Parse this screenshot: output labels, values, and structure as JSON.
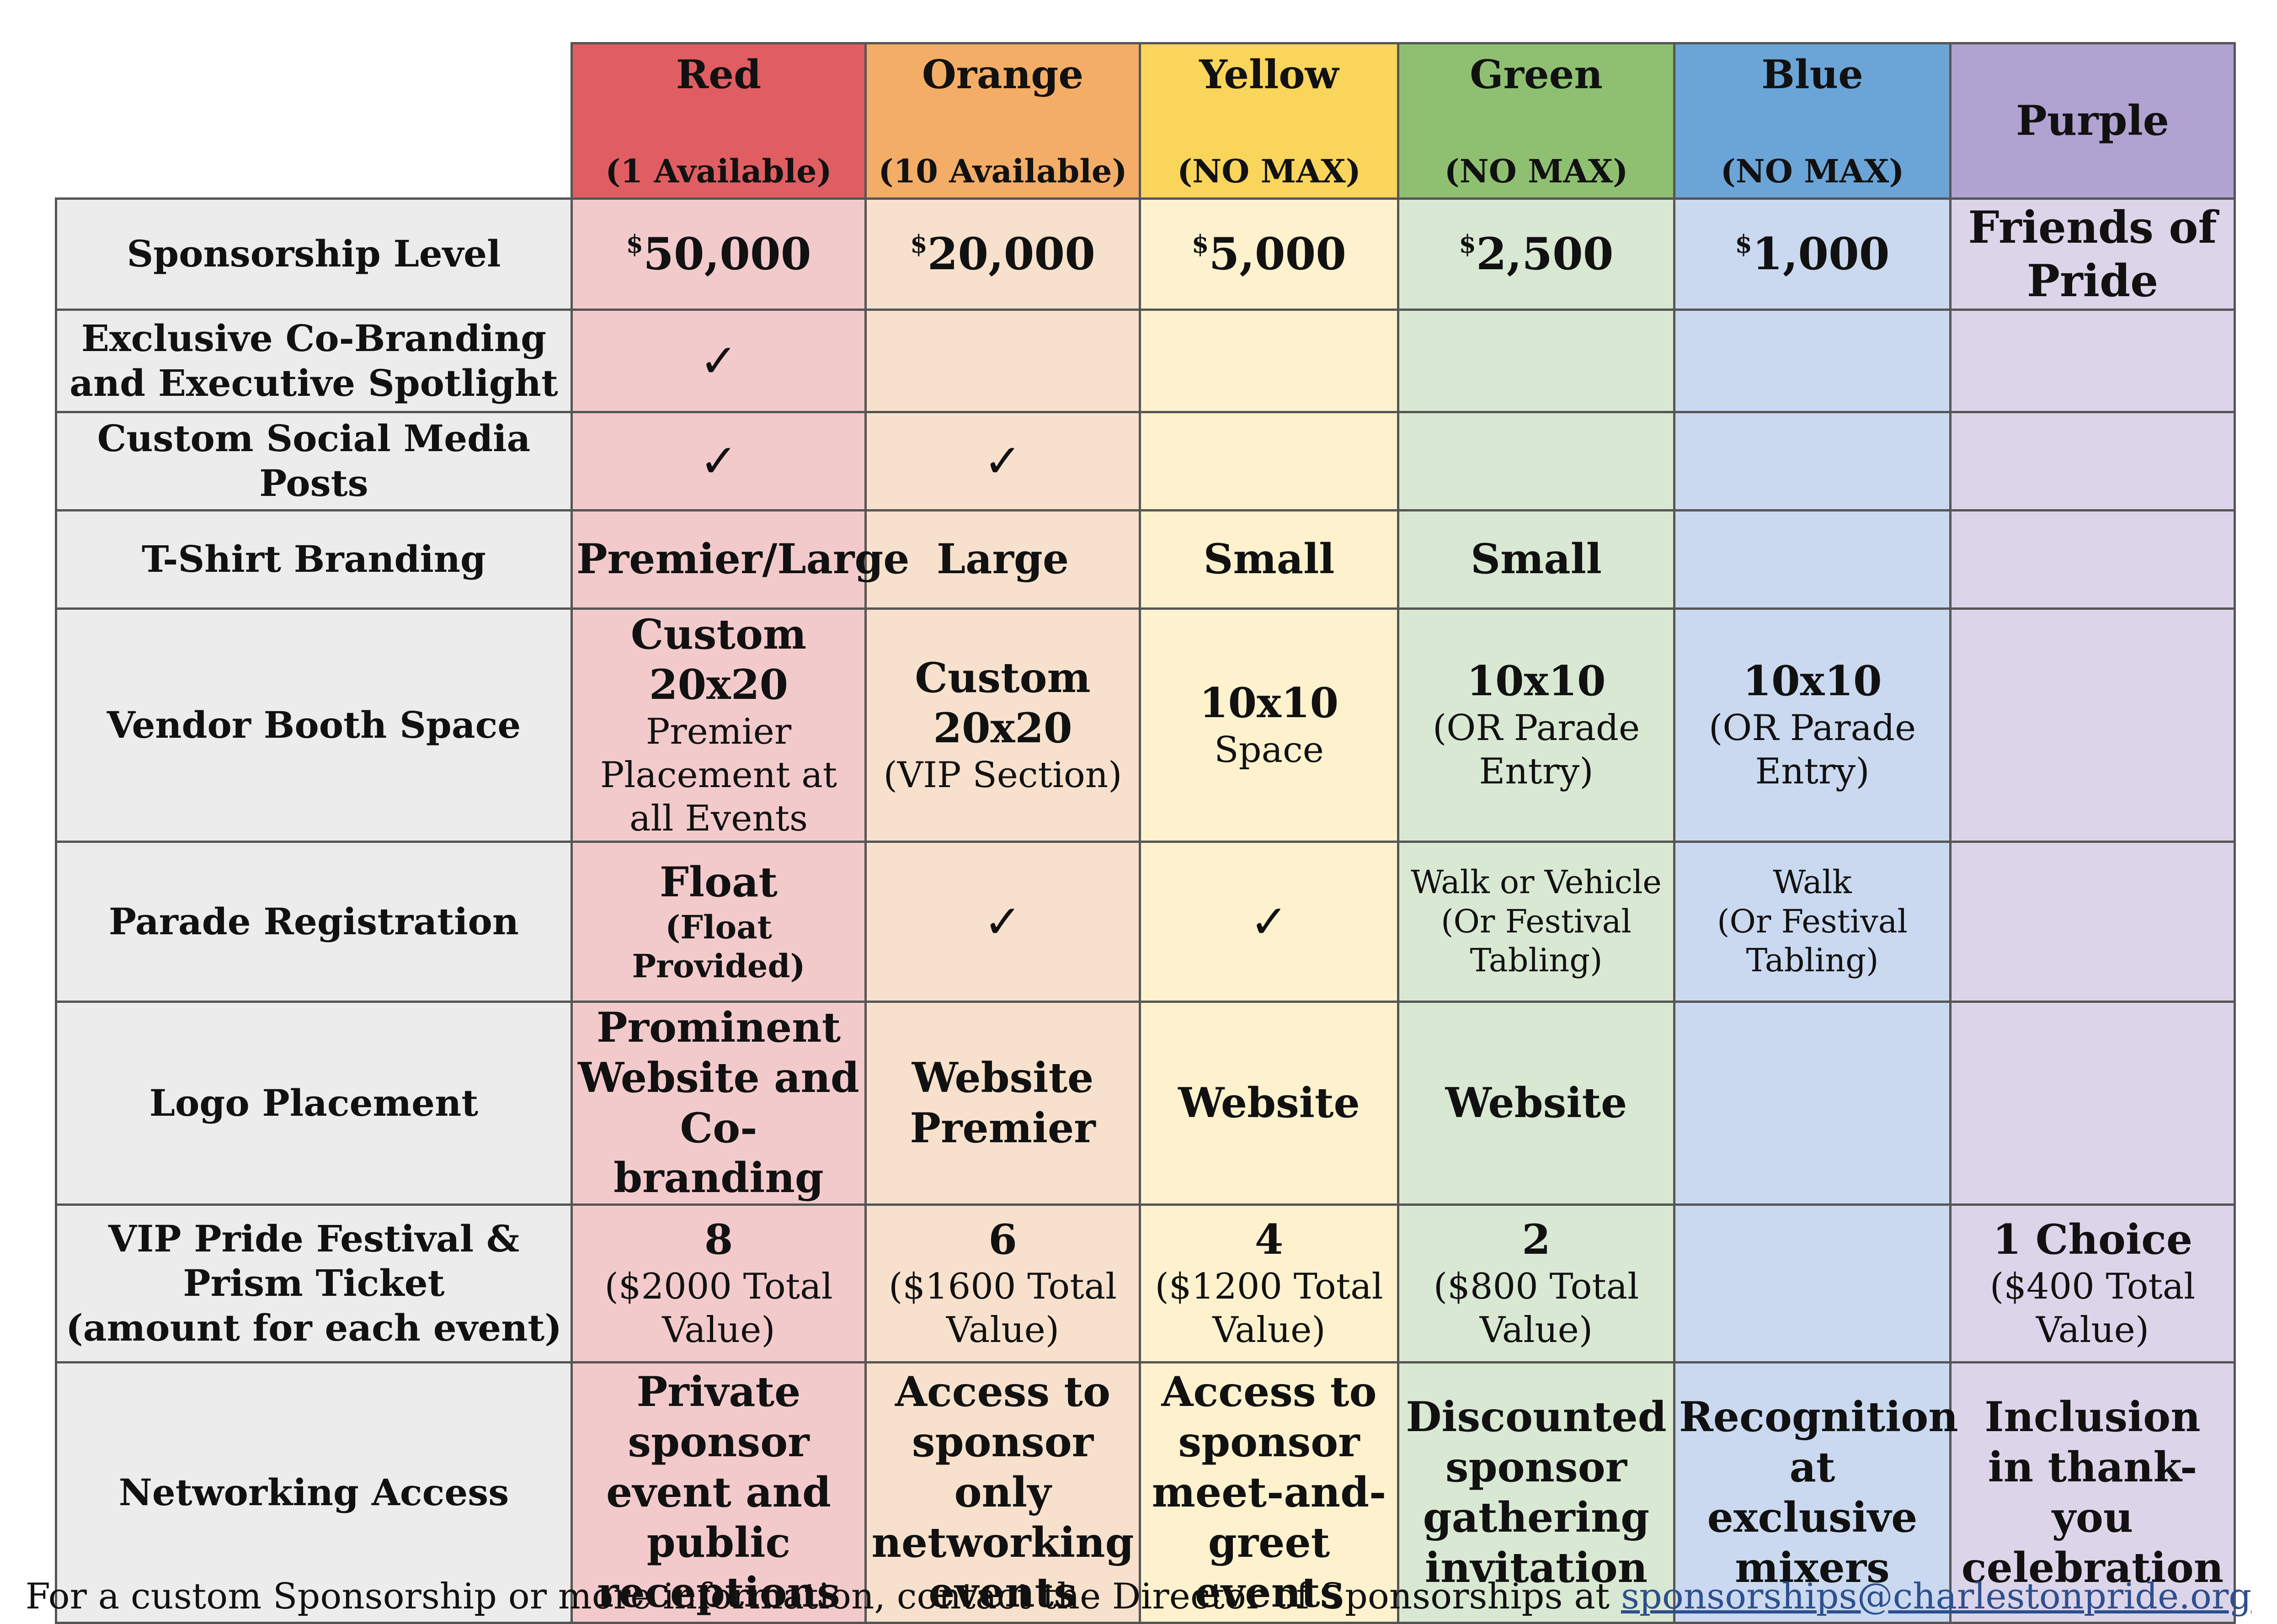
{
  "tiers": [
    {
      "name": "Red",
      "availability": "(1 Available)",
      "color": "#e05e61"
    },
    {
      "name": "Orange",
      "availability": "(10 Available)",
      "color": "#f3ad66"
    },
    {
      "name": "Yellow",
      "availability": "(NO MAX)",
      "color": "#fad55b"
    },
    {
      "name": "Green",
      "availability": "(NO MAX)",
      "color": "#8fc072"
    },
    {
      "name": "Blue",
      "availability": "(NO MAX)",
      "color": "#6ba5d8"
    },
    {
      "name": "Purple",
      "availability": "",
      "color": "#b0a2d1"
    }
  ],
  "levels": {
    "label": "Sponsorship Level",
    "currency_symbol": "$",
    "prices": [
      "50,000",
      "20,000",
      "5,000",
      "2,500",
      "1,000"
    ],
    "purple": "Friends of Pride"
  },
  "rows": {
    "cobranding": {
      "label": "Exclusive Co-Branding and Executive Spotlight",
      "check": "✓"
    },
    "social": {
      "label": "Custom Social Media Posts",
      "check": "✓"
    },
    "tshirt": {
      "label": "T-Shirt Branding",
      "values": [
        "Premier/Large",
        "Large",
        "Small",
        "Small"
      ]
    },
    "booth": {
      "label": "Vendor Booth Space",
      "red": {
        "main": "Custom 20x20",
        "detail": "Premier Placement at all Events"
      },
      "orange": {
        "main": "Custom 20x20",
        "detail": "(VIP Section)"
      },
      "yellow": {
        "main": "10x10",
        "detail": "Space"
      },
      "green": {
        "main": "10x10",
        "detail": "(OR Parade Entry)"
      },
      "blue": {
        "main": "10x10",
        "detail": "(OR Parade Entry)"
      }
    },
    "parade": {
      "label": "Parade Registration",
      "red": {
        "main": "Float",
        "detail": "(Float Provided)"
      },
      "check": "✓",
      "green": {
        "main": "Walk or Vehicle",
        "detail": "(Or Festival Tabling)"
      },
      "blue": {
        "main": "Walk",
        "detail": "(Or Festival Tabling)"
      }
    },
    "logo": {
      "label": "Logo Placement",
      "values": [
        "Prominent Website and Co-branding",
        "Website Premier",
        "Website",
        "Website"
      ]
    },
    "vip": {
      "label": "VIP Pride Festival & Prism Ticket",
      "label_sub": "(amount for each event)",
      "red": {
        "main": "8",
        "detail": "($2000 Total Value)"
      },
      "orange": {
        "main": "6",
        "detail": "($1600 Total Value)"
      },
      "yellow": {
        "main": "4",
        "detail": "($1200 Total Value)"
      },
      "green": {
        "main": "2",
        "detail": "($800 Total Value)"
      },
      "purple": {
        "main": "1 Choice",
        "detail": "($400 Total Value)"
      }
    },
    "networking": {
      "label": "Networking Access",
      "values": [
        "Private sponsor event and public receptions",
        "Access to sponsor only networking events",
        "Access to sponsor meet-and-greet events",
        "Discounted sponsor gathering invitation",
        "Recognition at exclusive mixers",
        "Inclusion in thank-you celebration"
      ]
    }
  },
  "footer": {
    "text": "For a custom Sponsorship or more information, contact the Director of Sponsorships at",
    "email": "sponsorships@charlestonpride.org"
  }
}
